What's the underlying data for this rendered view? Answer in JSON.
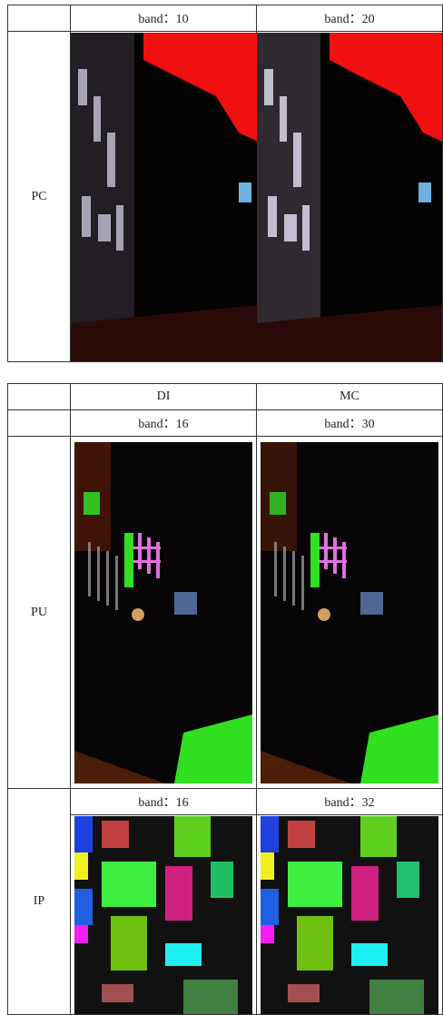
{
  "table1": {
    "header": [
      "band：10",
      "band：20"
    ],
    "row_label": "PC"
  },
  "table2": {
    "header": [
      "DI",
      "MC"
    ],
    "pu": {
      "label": "PU",
      "bands": [
        "band：16",
        "band：30"
      ]
    },
    "ip": {
      "label": "IP",
      "bands": [
        "band：16",
        "band：32"
      ]
    }
  }
}
